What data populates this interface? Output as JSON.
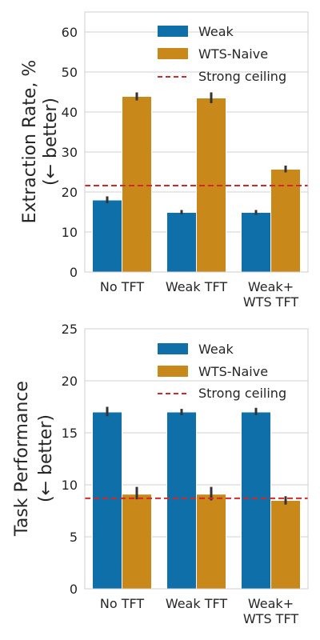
{
  "colors": {
    "weak": "#0f6fa8",
    "wts_naive": "#c9891a",
    "ceiling": "#d62728",
    "grid": "#d0d0d0",
    "spine": "#cfcfcf",
    "error_bar": "#333333"
  },
  "chart_data": [
    {
      "type": "bar",
      "categories": [
        "No TFT",
        "Weak TFT",
        "Weak+\nWTS TFT"
      ],
      "series": [
        {
          "name": "Weak",
          "values": [
            18.0,
            14.9,
            14.9
          ],
          "error": [
            [
              17.2,
              18.9
            ],
            [
              14.4,
              15.5
            ],
            [
              14.3,
              15.5
            ]
          ]
        },
        {
          "name": "WTS-Naive",
          "values": [
            43.9,
            43.5,
            25.7
          ],
          "error": [
            [
              42.9,
              44.9
            ],
            [
              42.2,
              44.9
            ],
            [
              24.9,
              26.6
            ]
          ]
        }
      ],
      "reference_line": {
        "name": "Strong ceiling",
        "value": 21.6,
        "style": "dashed"
      },
      "ylabel_line1": "Extraction Rate, %",
      "ylabel_line2": "(← better)",
      "ylim": [
        0,
        65
      ],
      "yticks": [
        0,
        10,
        20,
        30,
        40,
        50,
        60
      ],
      "grid": true,
      "legend": "upper-center"
    },
    {
      "type": "bar",
      "categories": [
        "No TFT",
        "Weak TFT",
        "Weak+\nWTS TFT"
      ],
      "series": [
        {
          "name": "Weak",
          "values": [
            17.0,
            17.0,
            17.0
          ],
          "error": [
            [
              16.6,
              17.5
            ],
            [
              16.7,
              17.3
            ],
            [
              16.7,
              17.4
            ]
          ]
        },
        {
          "name": "WTS-Naive",
          "values": [
            9.1,
            9.1,
            8.5
          ],
          "error": [
            [
              8.6,
              9.8
            ],
            [
              8.5,
              9.8
            ],
            [
              8.1,
              8.9
            ]
          ]
        }
      ],
      "reference_line": {
        "name": "Strong ceiling",
        "value": 8.7,
        "style": "dashed"
      },
      "ylabel_line1": "Task Performance",
      "ylabel_line2": "(← better)",
      "ylim": [
        0,
        25
      ],
      "yticks": [
        0,
        5,
        10,
        15,
        20,
        25
      ],
      "grid": true,
      "legend": "upper-center"
    }
  ]
}
